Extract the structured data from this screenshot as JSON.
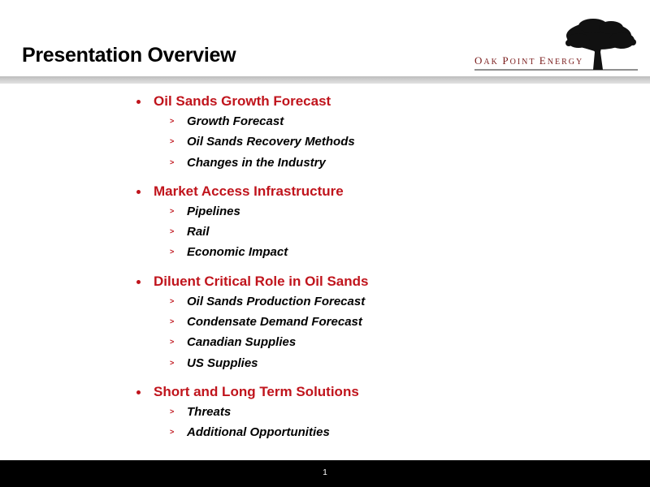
{
  "slide": {
    "title": "Presentation Overview",
    "page_number": "1"
  },
  "logo": {
    "text_first_letters": [
      "O",
      "P",
      "E"
    ],
    "text_rest": [
      "AK ",
      "OINT ",
      "NERGY"
    ],
    "icon": "oak-tree-icon",
    "accent_color": "#7a1c1c"
  },
  "colors": {
    "heading": "#c0141c",
    "footer": "#000000",
    "rule": "#c8c8c8"
  },
  "sections": [
    {
      "heading": "Oil Sands Growth Forecast",
      "items": [
        "Growth Forecast",
        "Oil Sands Recovery Methods",
        "Changes in the Industry"
      ]
    },
    {
      "heading": "Market Access Infrastructure",
      "items": [
        "Pipelines",
        "Rail",
        "Economic Impact"
      ]
    },
    {
      "heading": "Diluent Critical Role in Oil Sands",
      "items": [
        "Oil Sands Production Forecast",
        "Condensate Demand Forecast",
        "Canadian Supplies",
        "US Supplies"
      ]
    },
    {
      "heading": "Short and Long Term Solutions",
      "items": [
        "Threats",
        "Additional Opportunities"
      ]
    }
  ]
}
